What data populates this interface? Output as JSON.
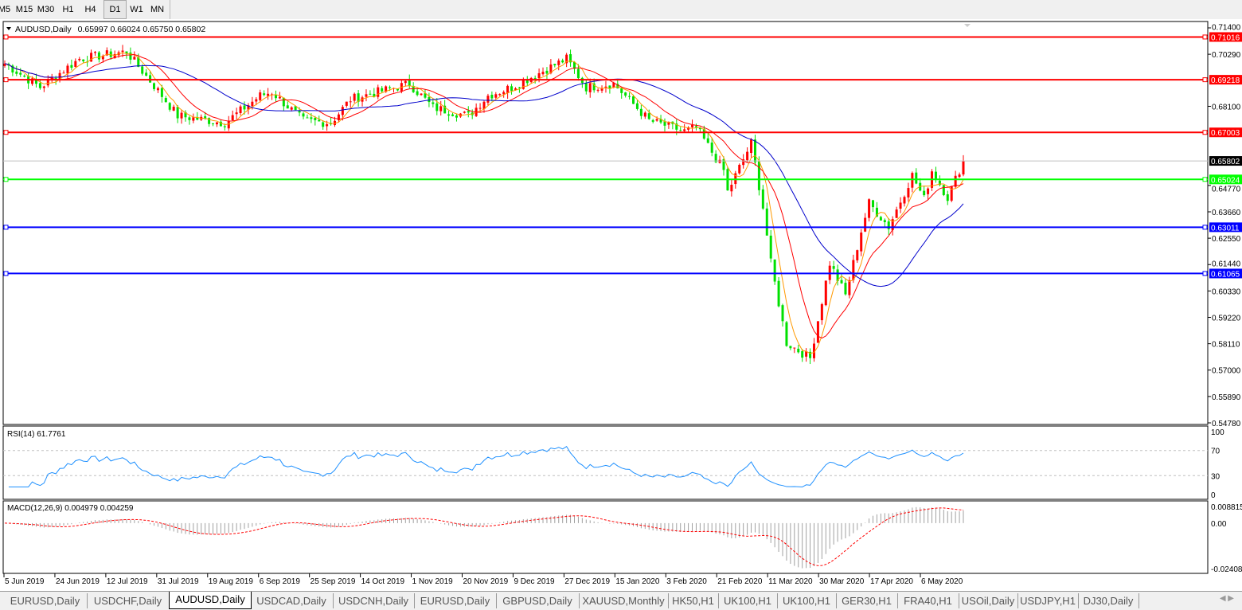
{
  "toolbar": {
    "timeframes": [
      "M5",
      "M15",
      "M30",
      "H1",
      "H4",
      "D1",
      "W1",
      "MN"
    ],
    "active": "D1"
  },
  "chart_header": {
    "symbol": "AUDUSD,Daily",
    "ohlc": "0.65997 0.66024 0.65750 0.65802"
  },
  "colors": {
    "bull_candle": "#ff0000",
    "bear_candle": "#00e000",
    "ma_fast": "#ff9900",
    "ma_mid": "#ff0000",
    "ma_slow": "#0000cc",
    "rsi_line": "#1e90ff",
    "macd_hist": "#a0a0a0",
    "macd_signal": "#ff0000"
  },
  "chart_data": {
    "type": "candlestick",
    "symbol": "AUDUSD",
    "timeframe": "Daily",
    "ylim": [
      0.5478,
      0.714
    ],
    "y_ticks": [
      "0.71400",
      "0.70290",
      "0.68100",
      "0.64770",
      "0.63660",
      "0.62550",
      "0.61440",
      "0.60330",
      "0.59220",
      "0.58110",
      "0.57000",
      "0.55890",
      "0.54780"
    ],
    "x_ticks": [
      "5 Jun 2019",
      "24 Jun 2019",
      "12 Jul 2019",
      "31 Jul 2019",
      "19 Aug 2019",
      "6 Sep 2019",
      "25 Sep 2019",
      "14 Oct 2019",
      "1 Nov 2019",
      "20 Nov 2019",
      "9 Dec 2019",
      "27 Dec 2019",
      "15 Jan 2020",
      "3 Feb 2020",
      "21 Feb 2020",
      "11 Mar 2020",
      "30 Mar 2020",
      "17 Apr 2020",
      "6 May 2020"
    ],
    "approx_closes": [
      [
        "2019-06-05",
        0.699
      ],
      [
        "2019-06-18",
        0.689
      ],
      [
        "2019-07-02",
        0.701
      ],
      [
        "2019-07-19",
        0.704
      ],
      [
        "2019-07-31",
        0.6855
      ],
      [
        "2019-08-06",
        0.677
      ],
      [
        "2019-08-23",
        0.674
      ],
      [
        "2019-09-05",
        0.6855
      ],
      [
        "2019-09-09",
        0.687
      ],
      [
        "2019-09-20",
        0.675
      ],
      [
        "2019-09-30",
        0.674
      ],
      [
        "2019-10-07",
        0.684
      ],
      [
        "2019-10-28",
        0.6905
      ],
      [
        "2019-11-06",
        0.6805
      ],
      [
        "2019-11-18",
        0.677
      ],
      [
        "2019-11-25",
        0.6855
      ],
      [
        "2019-12-04",
        0.689
      ],
      [
        "2019-12-24",
        0.701
      ],
      [
        "2019-12-31",
        0.689
      ],
      [
        "2020-01-10",
        0.6905
      ],
      [
        "2020-01-22",
        0.675
      ],
      [
        "2020-02-03",
        0.6705
      ],
      [
        "2020-02-07",
        0.672
      ],
      [
        "2020-02-17",
        0.654
      ],
      [
        "2020-02-19",
        0.645
      ],
      [
        "2020-02-27",
        0.6655
      ],
      [
        "2020-03-02",
        0.6385
      ],
      [
        "2020-03-05",
        0.615
      ],
      [
        "2020-03-11",
        0.5815
      ],
      [
        "2020-03-19",
        0.575
      ],
      [
        "2020-03-26",
        0.615
      ],
      [
        "2020-03-31",
        0.6015
      ],
      [
        "2020-04-06",
        0.6285
      ],
      [
        "2020-04-09",
        0.6403
      ],
      [
        "2020-04-16",
        0.6303
      ],
      [
        "2020-04-24",
        0.652
      ],
      [
        "2020-04-28",
        0.642
      ],
      [
        "2020-05-01",
        0.654
      ],
      [
        "2020-05-07",
        0.6427
      ],
      [
        "2020-05-12",
        0.658
      ]
    ],
    "horizontal_lines": [
      {
        "price": "0.71016",
        "color": "#ff0000"
      },
      {
        "price": "0.69218",
        "color": "#ff0000"
      },
      {
        "price": "0.67003",
        "color": "#ff0000"
      },
      {
        "price": "0.65024",
        "color": "#00ff00"
      },
      {
        "price": "0.63011",
        "color": "#0000ff"
      },
      {
        "price": "0.61065",
        "color": "#0000ff"
      }
    ],
    "current_price": "0.65802",
    "indicators": {
      "rsi": {
        "label": "RSI(14) 61.7761",
        "levels": [
          "100",
          "70",
          "30",
          "0"
        ],
        "ylim": [
          0,
          100
        ]
      },
      "macd": {
        "label": "MACD(12,26,9) 0.004979 0.004259",
        "ticks": [
          "0.008815",
          "0.00",
          "-0.02408"
        ],
        "ylim": [
          -0.02408,
          0.008815
        ]
      }
    }
  },
  "tabs": [
    "EURUSD,Daily",
    "USDCHF,Daily",
    "AUDUSD,Daily",
    "USDCAD,Daily",
    "USDCNH,Daily",
    "EURUSD,Daily",
    "GBPUSD,Daily",
    "XAUUSD,Monthly",
    "HK50,H1",
    "UK100,H1",
    "UK100,H1",
    "GER30,H1",
    "FRA40,H1",
    "USOil,Daily",
    "USDJPY,H1",
    "DJ30,Daily"
  ],
  "active_tab": "AUDUSD,Daily",
  "tab_nav": "◀ ▶"
}
